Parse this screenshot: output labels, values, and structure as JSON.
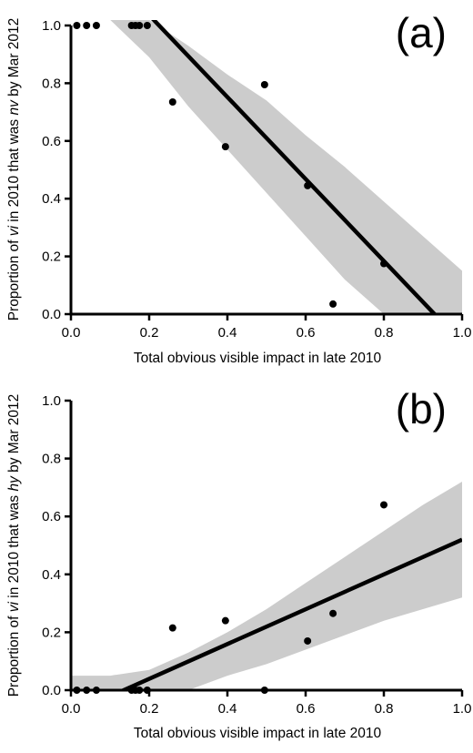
{
  "chart_data": [
    {
      "panel_label": "(a)",
      "type": "scatter",
      "xlabel": "Total obvious visible impact in late 2010",
      "ylabel_parts": [
        "Proportion of ",
        "vi",
        " in 2010 that was ",
        "nv",
        " by Mar 2012"
      ],
      "xlim": [
        0,
        1
      ],
      "ylim": [
        0,
        1
      ],
      "xticks": [
        0.0,
        0.2,
        0.4,
        0.6,
        0.8,
        1.0
      ],
      "yticks": [
        0.0,
        0.2,
        0.4,
        0.6,
        0.8,
        1.0
      ],
      "xtick_labels": [
        "0.0",
        "0.2",
        "0.4",
        "0.6",
        "0.8",
        "1.0"
      ],
      "ytick_labels": [
        "0.0",
        "0.2",
        "0.4",
        "0.6",
        "0.8",
        "1.0"
      ],
      "points": [
        {
          "x": 0.015,
          "y": 1.0
        },
        {
          "x": 0.04,
          "y": 1.0
        },
        {
          "x": 0.065,
          "y": 1.0
        },
        {
          "x": 0.155,
          "y": 1.0
        },
        {
          "x": 0.165,
          "y": 1.0
        },
        {
          "x": 0.175,
          "y": 1.0
        },
        {
          "x": 0.195,
          "y": 1.0
        },
        {
          "x": 0.26,
          "y": 0.735
        },
        {
          "x": 0.395,
          "y": 0.58
        },
        {
          "x": 0.495,
          "y": 0.795
        },
        {
          "x": 0.605,
          "y": 0.445
        },
        {
          "x": 0.67,
          "y": 0.035
        },
        {
          "x": 0.8,
          "y": 0.175
        }
      ],
      "fit_line": [
        [
          0.0,
          1.32
        ],
        [
          1.0,
          -0.1
        ]
      ],
      "confidence_band": {
        "x": [
          0.0,
          0.1,
          0.2,
          0.3,
          0.4,
          0.5,
          0.6,
          0.7,
          0.8,
          0.9,
          1.0
        ],
        "upper": [
          1.02,
          1.02,
          1.02,
          0.93,
          0.83,
          0.74,
          0.62,
          0.51,
          0.39,
          0.27,
          0.15
        ],
        "lower": [
          1.02,
          1.02,
          0.89,
          0.72,
          0.57,
          0.42,
          0.27,
          0.12,
          0.0,
          0.0,
          0.0
        ]
      },
      "band_color": "#cccccc",
      "line_color": "#000000"
    },
    {
      "panel_label": "(b)",
      "type": "scatter",
      "xlabel": "Total obvious visible impact in late 2010",
      "ylabel_parts": [
        "Proportion of ",
        "vi",
        " in 2010 that was ",
        "hy",
        " by Mar 2012"
      ],
      "xlim": [
        0,
        1
      ],
      "ylim": [
        0,
        1
      ],
      "xticks": [
        0.0,
        0.2,
        0.4,
        0.6,
        0.8,
        1.0
      ],
      "yticks": [
        0.0,
        0.2,
        0.4,
        0.6,
        0.8,
        1.0
      ],
      "xtick_labels": [
        "0.0",
        "0.2",
        "0.4",
        "0.6",
        "0.8",
        "1.0"
      ],
      "ytick_labels": [
        "0.0",
        "0.2",
        "0.4",
        "0.6",
        "0.8",
        "1.0"
      ],
      "points": [
        {
          "x": 0.015,
          "y": 0.0
        },
        {
          "x": 0.04,
          "y": 0.0
        },
        {
          "x": 0.065,
          "y": 0.0
        },
        {
          "x": 0.155,
          "y": 0.0
        },
        {
          "x": 0.165,
          "y": 0.0
        },
        {
          "x": 0.175,
          "y": 0.0
        },
        {
          "x": 0.195,
          "y": 0.0
        },
        {
          "x": 0.26,
          "y": 0.215
        },
        {
          "x": 0.395,
          "y": 0.24
        },
        {
          "x": 0.495,
          "y": 0.0
        },
        {
          "x": 0.605,
          "y": 0.17
        },
        {
          "x": 0.67,
          "y": 0.265
        },
        {
          "x": 0.8,
          "y": 0.64
        }
      ],
      "fit_line": [
        [
          0.085,
          -0.03
        ],
        [
          1.0,
          0.52
        ]
      ],
      "confidence_band": {
        "x": [
          0.0,
          0.1,
          0.2,
          0.3,
          0.4,
          0.5,
          0.6,
          0.7,
          0.8,
          0.9,
          1.0
        ],
        "upper": [
          0.05,
          0.05,
          0.07,
          0.13,
          0.2,
          0.28,
          0.37,
          0.46,
          0.55,
          0.64,
          0.72
        ],
        "lower": [
          -0.02,
          -0.02,
          -0.02,
          0.0,
          0.05,
          0.09,
          0.14,
          0.19,
          0.24,
          0.28,
          0.32
        ]
      },
      "band_color": "#cccccc",
      "line_color": "#000000"
    }
  ]
}
